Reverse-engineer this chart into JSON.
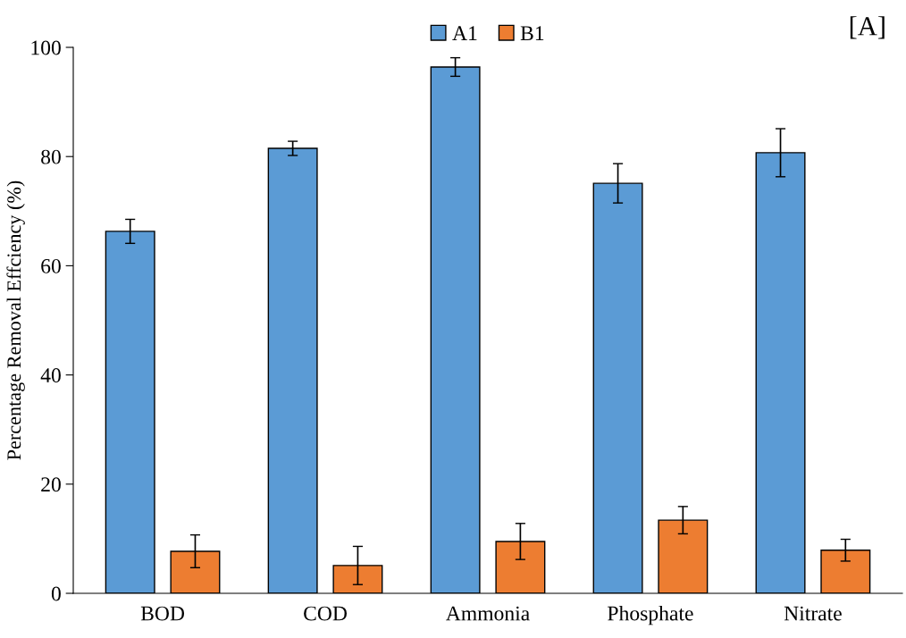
{
  "chart_data": {
    "type": "bar",
    "ylabel": "Percentage Removal Effciency (%)",
    "categories": [
      "BOD",
      "COD",
      "Ammonia",
      "Phosphate",
      "Nitrate"
    ],
    "series": [
      {
        "name": "A1",
        "color": "#5b9bd5",
        "values": [
          66.3,
          81.5,
          96.4,
          75.1,
          80.7
        ],
        "errors": [
          2.2,
          1.3,
          1.7,
          3.6,
          4.4
        ]
      },
      {
        "name": "B1",
        "color": "#ed7d31",
        "values": [
          7.7,
          5.1,
          9.5,
          13.4,
          7.9
        ],
        "errors": [
          3.0,
          3.5,
          3.3,
          2.5,
          2.0
        ]
      }
    ],
    "ylim": [
      0,
      100
    ],
    "yticks": [
      0,
      20,
      40,
      60,
      80,
      100
    ],
    "grid": false,
    "legend": "top",
    "annotations": [
      "[A]"
    ]
  }
}
